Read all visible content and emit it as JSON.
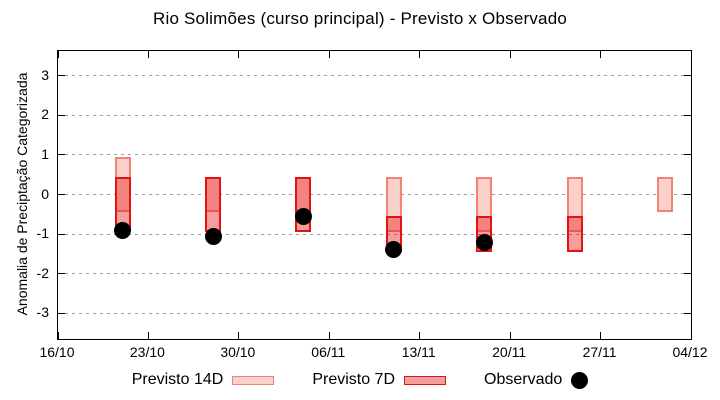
{
  "chart_data": {
    "type": "candlestick-range-boxes",
    "title": "Rio Solimões (curso principal) - Previsto x Observado",
    "xlabel": "",
    "ylabel": "Anomalia de Preciptação Categorizada",
    "ylim": [
      -3.6,
      3.6
    ],
    "grid": true,
    "legend_position": "below-plot",
    "y_ticks": [
      -3,
      -2,
      -1,
      0,
      1,
      2,
      3
    ],
    "x_ticks": [
      {
        "label": "16/10",
        "day": 0
      },
      {
        "label": "23/10",
        "day": 7
      },
      {
        "label": "30/10",
        "day": 14
      },
      {
        "label": "06/11",
        "day": 21
      },
      {
        "label": "13/11",
        "day": 28
      },
      {
        "label": "20/11",
        "day": 35
      },
      {
        "label": "27/11",
        "day": 42
      },
      {
        "label": "04/12",
        "day": 49
      }
    ],
    "series": [
      {
        "name": "Previsto 14D",
        "type": "range-box"
      },
      {
        "name": "Previsto 7D",
        "type": "range-box"
      },
      {
        "name": "Observado",
        "type": "point"
      }
    ],
    "bars": [
      {
        "x_day": 5,
        "previsto_14d": [
          0.95,
          -0.45
        ],
        "previsto_7d": [
          0.45,
          -0.95
        ],
        "observado": -0.9
      },
      {
        "x_day": 12,
        "previsto_14d": [
          0.45,
          -0.45
        ],
        "previsto_7d": [
          0.45,
          -0.95
        ],
        "observado": -1.05
      },
      {
        "x_day": 19,
        "previsto_14d": [
          0.45,
          -0.45
        ],
        "previsto_7d": [
          0.45,
          -0.95
        ],
        "observado": -0.55
      },
      {
        "x_day": 26,
        "previsto_14d": [
          0.45,
          -0.95
        ],
        "previsto_7d": [
          -0.55,
          -1.45
        ],
        "observado": -1.4
      },
      {
        "x_day": 33,
        "previsto_14d": [
          0.45,
          -0.95
        ],
        "previsto_7d": [
          -0.55,
          -1.45
        ],
        "observado": -1.2
      },
      {
        "x_day": 40,
        "previsto_14d": [
          0.45,
          -0.95
        ],
        "previsto_7d": [
          -0.55,
          -1.45
        ],
        "observado": null
      },
      {
        "x_day": 47,
        "previsto_14d": [
          0.45,
          -0.45
        ],
        "previsto_7d": null,
        "observado": null
      }
    ],
    "legend": [
      {
        "label": "Previsto 14D",
        "sample": "box14"
      },
      {
        "label": "Previsto 7D",
        "sample": "box7"
      },
      {
        "label": "Observado",
        "sample": "dot"
      }
    ],
    "colors": {
      "previsto_14d_fill": "#fbd0ca",
      "previsto_14d_border": "#ef8476",
      "previsto_7d_fill": "rgba(230,25,25,0.42)",
      "previsto_7d_border": "#e01414",
      "observado": "#000000",
      "grid": "#9a9a9a",
      "axis": "#000000"
    }
  }
}
